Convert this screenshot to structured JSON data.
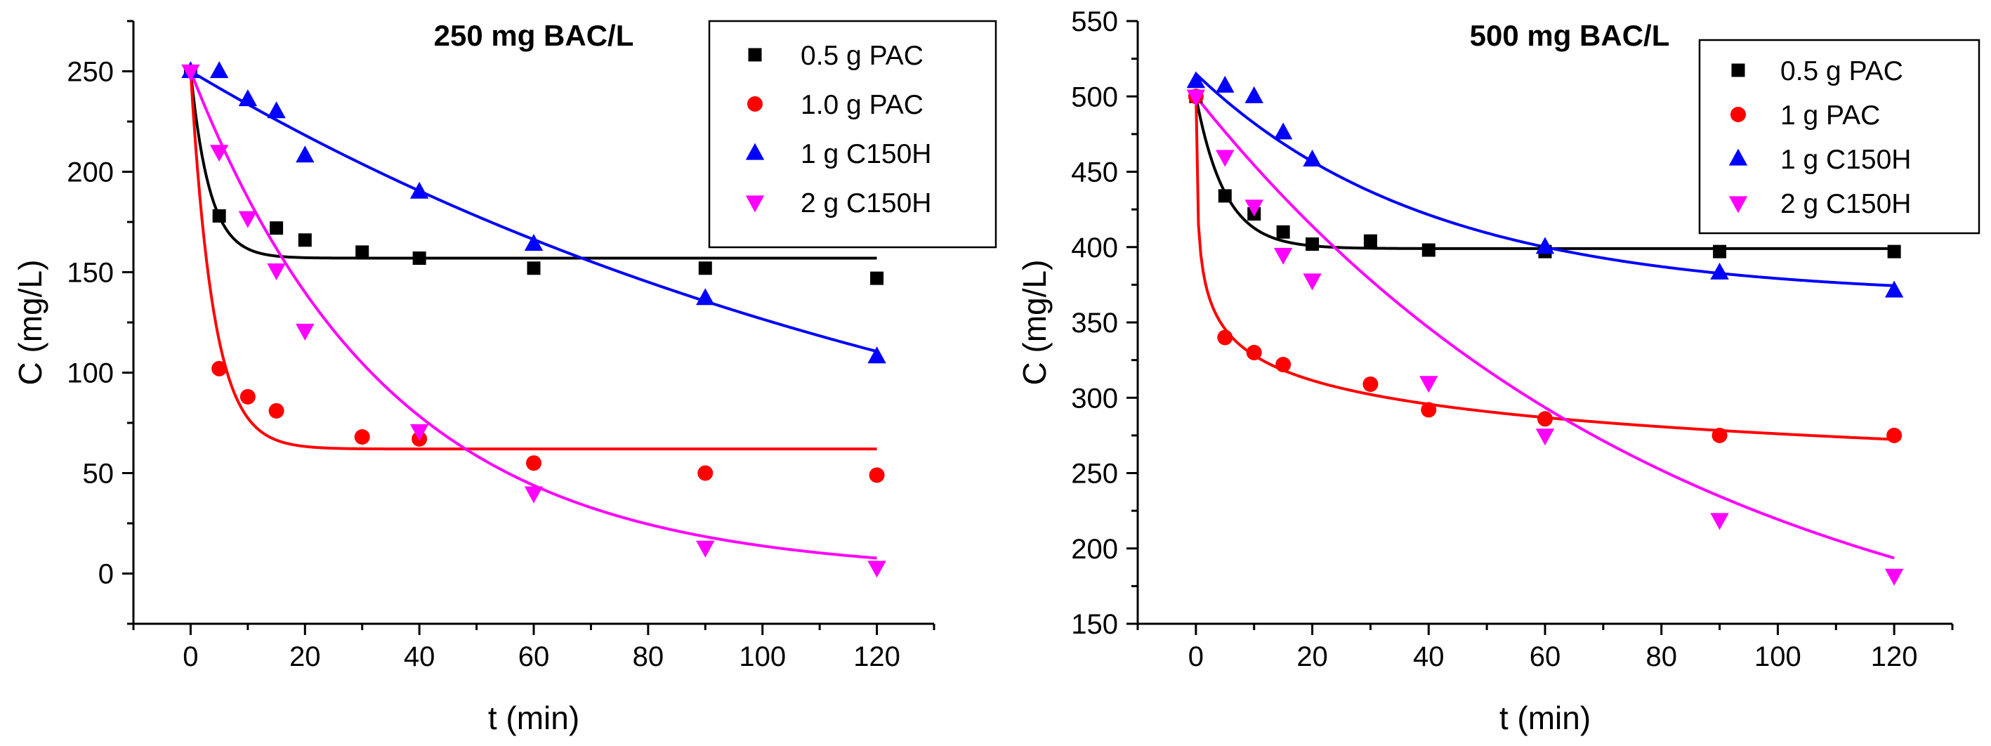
{
  "chart_data": [
    {
      "type": "scatter",
      "title": "250 mg BAC/L",
      "xlabel": "t (min)",
      "ylabel": "C (mg/L)",
      "xlim": [
        -10,
        130
      ],
      "ylim": [
        -25,
        275
      ],
      "xticks": [
        0,
        20,
        40,
        60,
        80,
        100,
        120
      ],
      "yticks": [
        0,
        50,
        100,
        150,
        200,
        250
      ],
      "legend_position": "top-right",
      "series": [
        {
          "name": "0.5 g PAC",
          "marker": "square",
          "color": "#000000",
          "x": [
            0,
            5,
            15,
            20,
            30,
            40,
            60,
            90,
            120
          ],
          "y": [
            250,
            178,
            172,
            166,
            160,
            157,
            152,
            152,
            147
          ],
          "fit": {
            "model": "exp",
            "c0": 250,
            "c_inf": 157,
            "k": 0.3
          }
        },
        {
          "name": "1.0 g PAC",
          "marker": "circle",
          "color": "#ff0000",
          "x": [
            5,
            10,
            15,
            30,
            40,
            60,
            90,
            120
          ],
          "y": [
            102,
            88,
            81,
            68,
            67,
            55,
            50,
            49
          ],
          "fit": {
            "model": "exp",
            "c0": 250,
            "c_inf": 62,
            "k": 0.25
          }
        },
        {
          "name": "1 g C150H",
          "marker": "triangle-up",
          "color": "#0000ff",
          "x": [
            0,
            5,
            10,
            15,
            20,
            40,
            60,
            90,
            120
          ],
          "y": [
            250,
            250,
            236,
            230,
            208,
            190,
            164,
            137,
            108
          ],
          "fit": {
            "model": "exp",
            "c0": 250,
            "c_inf": 0,
            "k": 0.0068
          }
        },
        {
          "name": "2 g C150H",
          "marker": "triangle-down",
          "color": "#ff00ff",
          "x": [
            0,
            5,
            10,
            15,
            20,
            40,
            60,
            90,
            120
          ],
          "y": [
            250,
            210,
            177,
            151,
            121,
            71,
            40,
            13,
            3
          ],
          "fit": {
            "model": "exp",
            "c0": 250,
            "c_inf": 0,
            "k": 0.029
          }
        }
      ]
    },
    {
      "type": "scatter",
      "title": "500 mg BAC/L",
      "xlabel": "t (min)",
      "ylabel": "C (mg/L)",
      "xlim": [
        -10,
        130
      ],
      "ylim": [
        150,
        550
      ],
      "xticks": [
        0,
        20,
        40,
        60,
        80,
        100,
        120
      ],
      "yticks": [
        150,
        200,
        250,
        300,
        350,
        400,
        450,
        500,
        550
      ],
      "legend_position": "top-right",
      "series": [
        {
          "name": "0.5 g PAC",
          "marker": "square",
          "color": "#000000",
          "x": [
            0,
            5,
            10,
            15,
            20,
            30,
            40,
            60,
            90,
            120
          ],
          "y": [
            500,
            434,
            422,
            410,
            402,
            404,
            398,
            397,
            397,
            397
          ],
          "fit": {
            "model": "exp",
            "c0": 500,
            "c_inf": 399,
            "k": 0.2
          }
        },
        {
          "name": "1 g PAC",
          "marker": "circle",
          "color": "#ff0000",
          "x": [
            0,
            5,
            10,
            15,
            30,
            40,
            60,
            90,
            120
          ],
          "y": [
            500,
            340,
            330,
            322,
            309,
            292,
            286,
            275,
            275
          ],
          "fit": {
            "model": "power",
            "a": 390,
            "b": -0.075,
            "t0": 0.04
          }
        },
        {
          "name": "1 g C150H",
          "marker": "triangle-up",
          "color": "#0000ff",
          "x": [
            0,
            5,
            10,
            15,
            20,
            60,
            90,
            120
          ],
          "y": [
            510,
            507,
            500,
            476,
            458,
            400,
            383,
            371
          ],
          "fit": {
            "model": "exp",
            "c0": 515,
            "c_inf": 367,
            "k": 0.025
          }
        },
        {
          "name": "2 g C150H",
          "marker": "triangle-down",
          "color": "#ff00ff",
          "x": [
            0,
            5,
            10,
            15,
            20,
            40,
            60,
            90,
            120
          ],
          "y": [
            500,
            460,
            427,
            395,
            378,
            310,
            275,
            219,
            182
          ],
          "fit": {
            "model": "exp",
            "c0": 500,
            "c_inf": 100,
            "k": 0.0121
          }
        }
      ]
    }
  ]
}
